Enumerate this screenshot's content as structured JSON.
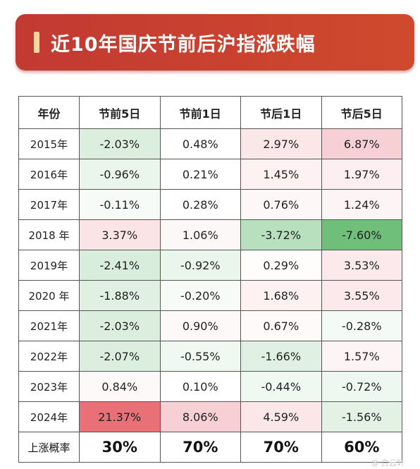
{
  "title": "近10年国庆节前后沪指涨跌幅",
  "columns": [
    "年份",
    "节前5日",
    "节前1日",
    "节后1日",
    "节后5日"
  ],
  "rows": [
    {
      "year": "2015年",
      "values": [
        "-2.03%",
        "0.48%",
        "2.97%",
        "6.87%"
      ]
    },
    {
      "year": "2016年",
      "values": [
        "-0.96%",
        "0.21%",
        "1.45%",
        "1.97%"
      ]
    },
    {
      "year": "2017年",
      "values": [
        "-0.11%",
        "0.28%",
        "0.76%",
        "1.24%"
      ]
    },
    {
      "year": "2018 年",
      "values": [
        "3.37%",
        "1.06%",
        "-3.72%",
        "-7.60%"
      ]
    },
    {
      "year": "2019年",
      "values": [
        "-2.41%",
        "-0.92%",
        "0.29%",
        "3.53%"
      ]
    },
    {
      "year": "2020 年",
      "values": [
        "-1.88%",
        "-0.20%",
        "1.68%",
        "3.55%"
      ]
    },
    {
      "year": "2021年",
      "values": [
        "-2.03%",
        "0.90%",
        "0.67%",
        "-0.28%"
      ]
    },
    {
      "year": "2022年",
      "values": [
        "-2.07%",
        "-0.55%",
        "-1.66%",
        "1.57%"
      ]
    },
    {
      "year": "2023年",
      "values": [
        "0.84%",
        "0.10%",
        "-0.44%",
        "-0.72%"
      ]
    },
    {
      "year": "2024年",
      "values": [
        "21.37%",
        "8.06%",
        "4.59%",
        "-1.56%"
      ]
    }
  ],
  "rate_row": {
    "label": "上涨概率",
    "values": [
      "30%",
      "70%",
      "70%",
      "60%"
    ]
  },
  "cell_colors": [
    [
      "#dcefdf",
      "#ffffff",
      "#fbe6e8",
      "#f6d0d4"
    ],
    [
      "#eaf5ec",
      "#ffffff",
      "#fdf1f2",
      "#fdeff1"
    ],
    [
      "#f7fbf8",
      "#ffffff",
      "#fdf7f8",
      "#fdf4f5"
    ],
    [
      "#fbe4e6",
      "#fdf8f8",
      "#b9e0be",
      "#6fbf7b"
    ],
    [
      "#d8eddb",
      "#eaf5ec",
      "#fffcfc",
      "#fbe9eb"
    ],
    [
      "#e0f1e3",
      "#f7fbf8",
      "#fdf1f2",
      "#fbe9eb"
    ],
    [
      "#dcefdf",
      "#fdf9f9",
      "#fffafa",
      "#f4faf5"
    ],
    [
      "#dcefdf",
      "#f0f8f2",
      "#e0f1e3",
      "#fdf4f5"
    ],
    [
      "#fdf9f9",
      "#ffffff",
      "#f0f8f2",
      "#eef7f0"
    ],
    [
      "#e87076",
      "#f6d0d4",
      "#fbe6e8",
      "#e4f2e6"
    ]
  ],
  "watermark": "@ 白云轩"
}
